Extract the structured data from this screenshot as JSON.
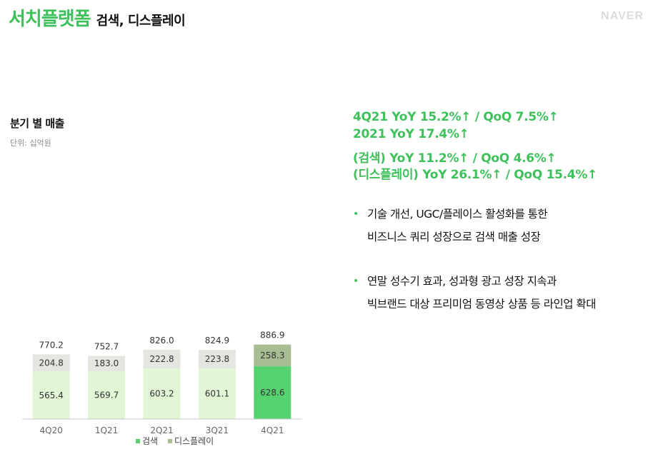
{
  "header": {
    "title_main": "서치플랫폼",
    "title_sub": "검색, 디스플레이",
    "brand": "NAVER"
  },
  "chart_section": {
    "title": "분기 별 매출",
    "unit": "단위: 십억원"
  },
  "chart_data": {
    "type": "bar",
    "stacked": true,
    "categories": [
      "4Q20",
      "1Q21",
      "2Q21",
      "3Q21",
      "4Q21"
    ],
    "series": [
      {
        "name": "검색",
        "values": [
          565.4,
          569.7,
          603.2,
          601.1,
          628.6
        ],
        "color": "#e2f5d4",
        "highlight_color": "#56d26f"
      },
      {
        "name": "디스플레이",
        "values": [
          204.8,
          183.0,
          222.8,
          223.8,
          258.3
        ],
        "color": "#e4e6e0",
        "highlight_color": "#a9bd94"
      }
    ],
    "totals": [
      "770.2",
      "752.7",
      "826.0",
      "824.9",
      "886.9"
    ],
    "value_labels": {
      "검색": [
        "565.4",
        "569.7",
        "603.2",
        "601.1",
        "628.6"
      ],
      "디스플레이": [
        "204.8",
        "183.0",
        "222.8",
        "223.8",
        "258.3"
      ]
    },
    "highlight_index": 4,
    "ylim": [
      0,
      1000
    ],
    "legend": [
      "검색",
      "디스플레이"
    ],
    "legend_colors": [
      "#56d26f",
      "#a9bd94"
    ],
    "legend_position": "bottom"
  },
  "highlights": [
    "4Q21 YoY 15.2%↑ / QoQ 7.5%↑",
    "2021 YoY 17.4%↑",
    "(검색) YoY 11.2%↑ / QoQ 4.6%↑",
    "(디스플레이) YoY 26.1%↑ / QoQ 15.4%↑"
  ],
  "bullets": [
    {
      "marker": "•",
      "lines": [
        "기술 개선, UGC/플레이스 활성화를 통한",
        "비즈니스 쿼리 성장으로 검색 매출 성장"
      ]
    },
    {
      "marker": "•",
      "lines": [
        "연말 성수기 효과, 성과형 광고 성장 지속과",
        "빅브랜드 대상 프리미엄 동영상 상품 등 라인업 확대"
      ]
    }
  ]
}
